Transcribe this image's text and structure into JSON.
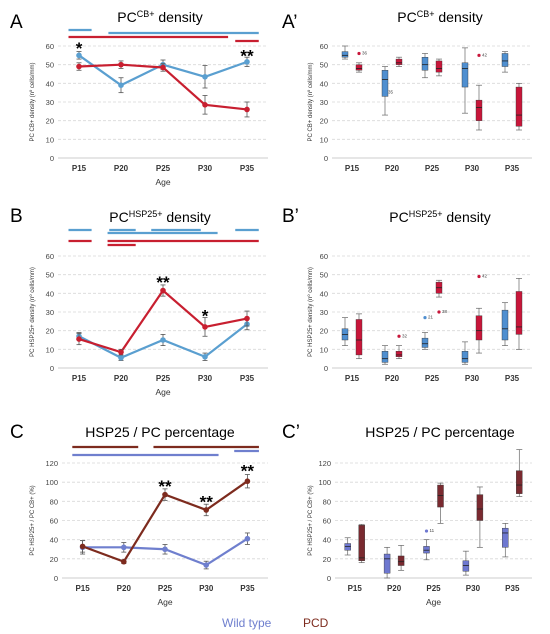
{
  "colors": {
    "wt": "#5a9fd0",
    "pcd": "#c81f30",
    "wt_c": "#6f7fce",
    "pcd_c": "#7d2b1e",
    "box_wt": "#4f8fd0",
    "box_pcd": "#c8163a",
    "box_wt_c": "#6e78d0",
    "box_pcd_c": "#7a2a30"
  },
  "legend": {
    "wt": "Wild type",
    "pcd": "PCD"
  },
  "chart_data": [
    {
      "id": "A",
      "type": "line",
      "panel_letter": "A",
      "title_main": "PC",
      "title_sup": "CB+",
      "title_rest": " density",
      "xlabel": "Age",
      "ylabel": "PC CB+ density (nº cells/mm)",
      "categories": [
        "P15",
        "P20",
        "P25",
        "P30",
        "P35"
      ],
      "ylim": [
        0,
        60
      ],
      "yticks": [
        0,
        10,
        20,
        30,
        40,
        50,
        60
      ],
      "color_set": "ab",
      "series": [
        {
          "key": "wt",
          "values": [
            55,
            39,
            50,
            43.5,
            51.5
          ],
          "errors": [
            2,
            4,
            2.5,
            6,
            2.5
          ]
        },
        {
          "key": "pcd",
          "values": [
            49,
            50,
            48.5,
            28.5,
            26
          ],
          "errors": [
            2,
            2,
            2,
            5,
            4
          ]
        }
      ],
      "annotations": [
        {
          "category": "P15",
          "y": 58.5,
          "text": "*"
        },
        {
          "category": "P35",
          "y": 54.5,
          "text": "**"
        }
      ],
      "sig_bars": [
        {
          "key": "wt",
          "row": 0,
          "from": -0.25,
          "to": 0.3
        },
        {
          "key": "wt",
          "row": 1,
          "from": 0.7,
          "to": 4.28
        },
        {
          "key": "pcd",
          "row": 2,
          "from": -0.25,
          "to": 3.55
        },
        {
          "key": "pcd",
          "row": 3,
          "from": 3.72,
          "to": 4.28
        }
      ]
    },
    {
      "id": "A2",
      "type": "box",
      "panel_letter": "A’",
      "title_main": "PC",
      "title_sup": "CB+",
      "title_rest": " density",
      "xlabel": "",
      "ylabel": "PC CB+ density (nº cells/mm)",
      "categories": [
        "P15",
        "P20",
        "P25",
        "P30",
        "P35"
      ],
      "ylim": [
        0,
        60
      ],
      "yticks": [
        0,
        10,
        20,
        30,
        40,
        50,
        60
      ],
      "color_set": "ab",
      "boxes": {
        "wt": [
          {
            "min": 53,
            "q1": 54,
            "median": 55,
            "q3": 57,
            "max": 60
          },
          {
            "min": 23,
            "q1": 33,
            "median": 42,
            "q3": 47,
            "max": 49
          },
          {
            "min": 43,
            "q1": 47,
            "median": 50,
            "q3": 54,
            "max": 56
          },
          {
            "min": 24,
            "q1": 38,
            "median": 48,
            "q3": 51,
            "max": 59
          },
          {
            "min": 46,
            "q1": 49,
            "median": 52,
            "q3": 56,
            "max": 57
          }
        ],
        "pcd": [
          {
            "min": 46,
            "q1": 47,
            "median": 48,
            "q3": 50,
            "max": 51
          },
          {
            "min": 49,
            "q1": 50,
            "median": 51,
            "q3": 53,
            "max": 54
          },
          {
            "min": 44,
            "q1": 46,
            "median": 48,
            "q3": 52,
            "max": 53
          },
          {
            "min": 15,
            "q1": 20,
            "median": 27,
            "q3": 31,
            "max": 39
          },
          {
            "min": 15,
            "q1": 17,
            "median": 23,
            "q3": 38,
            "max": 40
          }
        ]
      },
      "outliers": [
        {
          "category": "P15",
          "key": "pcd",
          "y": 56,
          "label": "36"
        },
        {
          "category": "P20",
          "key": "wt",
          "y": 35,
          "label": "35"
        },
        {
          "category": "P30",
          "key": "pcd",
          "y": 55,
          "label": "42"
        }
      ]
    },
    {
      "id": "B",
      "type": "line",
      "panel_letter": "B",
      "title_main": "PC",
      "title_sup": "HSP25+",
      "title_rest": " density",
      "xlabel": "Age",
      "ylabel": "PC HSP25+ density (nº cells/mm)",
      "categories": [
        "P15",
        "P20",
        "P25",
        "P30",
        "P35"
      ],
      "ylim": [
        0,
        60
      ],
      "yticks": [
        0,
        10,
        20,
        30,
        40,
        50,
        60
      ],
      "color_set": "ab",
      "series": [
        {
          "key": "wt",
          "values": [
            17,
            5.5,
            15,
            6,
            23.5
          ],
          "errors": [
            2,
            1.5,
            3,
            2,
            3
          ]
        },
        {
          "key": "pcd",
          "values": [
            15.5,
            8.5,
            41.5,
            22,
            26.5
          ],
          "errors": [
            3,
            1.5,
            3,
            5,
            4
          ]
        }
      ],
      "annotations": [
        {
          "category": "P25",
          "y": 45.5,
          "text": "**"
        },
        {
          "category": "P30",
          "y": 27.5,
          "text": "*"
        }
      ],
      "sig_bars": [
        {
          "key": "wt",
          "row": 0,
          "from": -0.25,
          "to": 0.3
        },
        {
          "key": "wt",
          "row": 0,
          "from": 0.72,
          "to": 1.35
        },
        {
          "key": "wt",
          "row": 0,
          "from": 1.72,
          "to": 2.9
        },
        {
          "key": "wt",
          "row": 0,
          "from": 3.72,
          "to": 4.28
        },
        {
          "key": "wt",
          "row": 1,
          "from": 0.68,
          "to": 3.3
        },
        {
          "key": "pcd",
          "row": 2,
          "from": -0.25,
          "to": 0.3
        },
        {
          "key": "pcd",
          "row": 2,
          "from": 0.68,
          "to": 4.28
        },
        {
          "key": "pcd",
          "row": 3,
          "from": 0.68,
          "to": 1.35
        }
      ]
    },
    {
      "id": "B2",
      "type": "box",
      "panel_letter": "B’",
      "title_main": "PC",
      "title_sup": "HSP25+",
      "title_rest": " density",
      "xlabel": "",
      "ylabel": "PC HSP25+ density (nº cells/mm)",
      "categories": [
        "P15",
        "P20",
        "P25",
        "P30",
        "P35"
      ],
      "ylim": [
        0,
        60
      ],
      "yticks": [
        0,
        10,
        20,
        30,
        40,
        50,
        60
      ],
      "color_set": "ab",
      "boxes": {
        "wt": [
          {
            "min": 12,
            "q1": 15,
            "median": 18,
            "q3": 21,
            "max": 27
          },
          {
            "min": 2,
            "q1": 3,
            "median": 5,
            "q3": 9,
            "max": 12
          },
          {
            "min": 10,
            "q1": 11,
            "median": 13,
            "q3": 16,
            "max": 19
          },
          {
            "min": 2,
            "q1": 3,
            "median": 5,
            "q3": 9,
            "max": 14
          },
          {
            "min": 12,
            "q1": 15,
            "median": 21,
            "q3": 31,
            "max": 35
          }
        ],
        "pcd": [
          {
            "min": 5,
            "q1": 7,
            "median": 15,
            "q3": 26,
            "max": 29
          },
          {
            "min": 5,
            "q1": 6,
            "median": 7,
            "q3": 9,
            "max": 12
          },
          {
            "min": 38,
            "q1": 40,
            "median": 43,
            "q3": 46,
            "max": 47
          },
          {
            "min": 8,
            "q1": 15,
            "median": 20,
            "q3": 28,
            "max": 32
          },
          {
            "min": 10,
            "q1": 18,
            "median": 22,
            "q3": 41,
            "max": 48
          }
        ]
      },
      "outliers": [
        {
          "category": "P20",
          "key": "pcd",
          "y": 17,
          "label": "32"
        },
        {
          "category": "P25",
          "key": "wt",
          "y": 27,
          "label": "21"
        },
        {
          "category": "P25",
          "key": "pcd",
          "y": 30,
          "label": "38"
        },
        {
          "category": "P30",
          "key": "pcd",
          "y": 49,
          "label": "42"
        }
      ]
    },
    {
      "id": "C",
      "type": "line",
      "panel_letter": "C",
      "title_main": "HSP25 / PC percentage",
      "title_sup": "",
      "title_rest": "",
      "xlabel": "Age",
      "ylabel": "PC HSP25+ / PC CB+ (%)",
      "categories": [
        "P15",
        "P20",
        "P25",
        "P30",
        "P35"
      ],
      "ylim": [
        0,
        120
      ],
      "yticks": [
        0,
        20,
        40,
        60,
        80,
        100,
        120
      ],
      "color_set": "c",
      "series": [
        {
          "key": "wt",
          "values": [
            32,
            32,
            30,
            13.5,
            41
          ],
          "errors": [
            7,
            5,
            5,
            4,
            6
          ]
        },
        {
          "key": "pcd",
          "values": [
            33,
            17,
            87,
            71,
            101
          ],
          "errors": [
            6,
            2,
            6,
            6,
            7
          ]
        }
      ],
      "annotations": [
        {
          "category": "P25",
          "y": 95,
          "text": "**"
        },
        {
          "category": "P30",
          "y": 79,
          "text": "**"
        },
        {
          "category": "P35",
          "y": 111,
          "text": "**"
        }
      ],
      "sig_bars": [
        {
          "key": "pcd",
          "row": 0,
          "from": -0.25,
          "to": 1.35
        },
        {
          "key": "pcd",
          "row": 0,
          "from": 1.72,
          "to": 4.28
        },
        {
          "key": "wt",
          "row": 1,
          "from": 3.68,
          "to": 4.28
        },
        {
          "key": "wt",
          "row": 2,
          "from": -0.25,
          "to": 3.3
        }
      ]
    },
    {
      "id": "C2",
      "type": "box",
      "panel_letter": "C’",
      "title_main": "HSP25 / PC percentage",
      "title_sup": "",
      "title_rest": "",
      "xlabel": "Age",
      "ylabel": "PC HSP25+ / PC CB+ (%)",
      "categories": [
        "P15",
        "P20",
        "P25",
        "P30",
        "P35"
      ],
      "ylim": [
        0,
        120
      ],
      "yticks": [
        0,
        20,
        40,
        60,
        80,
        100,
        120
      ],
      "color_set": "c",
      "boxes": {
        "wt": [
          {
            "min": 24,
            "q1": 29,
            "median": 33,
            "q3": 36,
            "max": 42
          },
          {
            "min": 0,
            "q1": 5,
            "median": 20,
            "q3": 25,
            "max": 32
          },
          {
            "min": 19,
            "q1": 26,
            "median": 29,
            "q3": 33,
            "max": 40
          },
          {
            "min": 3,
            "q1": 7,
            "median": 13,
            "q3": 18,
            "max": 28
          },
          {
            "min": 22,
            "q1": 32,
            "median": 47,
            "q3": 52,
            "max": 57
          }
        ],
        "pcd": [
          {
            "min": 16,
            "q1": 18,
            "median": 21,
            "q3": 55,
            "max": 56
          },
          {
            "min": 8,
            "q1": 13,
            "median": 17,
            "q3": 23,
            "max": 34
          },
          {
            "min": 57,
            "q1": 74,
            "median": 86,
            "q3": 97,
            "max": 99
          },
          {
            "min": 32,
            "q1": 60,
            "median": 72,
            "q3": 87,
            "max": 95
          },
          {
            "min": 85,
            "q1": 88,
            "median": 97,
            "q3": 112,
            "max": 134
          }
        ]
      },
      "outliers": [
        {
          "category": "P25",
          "key": "wt",
          "y": 49,
          "label": "11"
        }
      ]
    }
  ]
}
